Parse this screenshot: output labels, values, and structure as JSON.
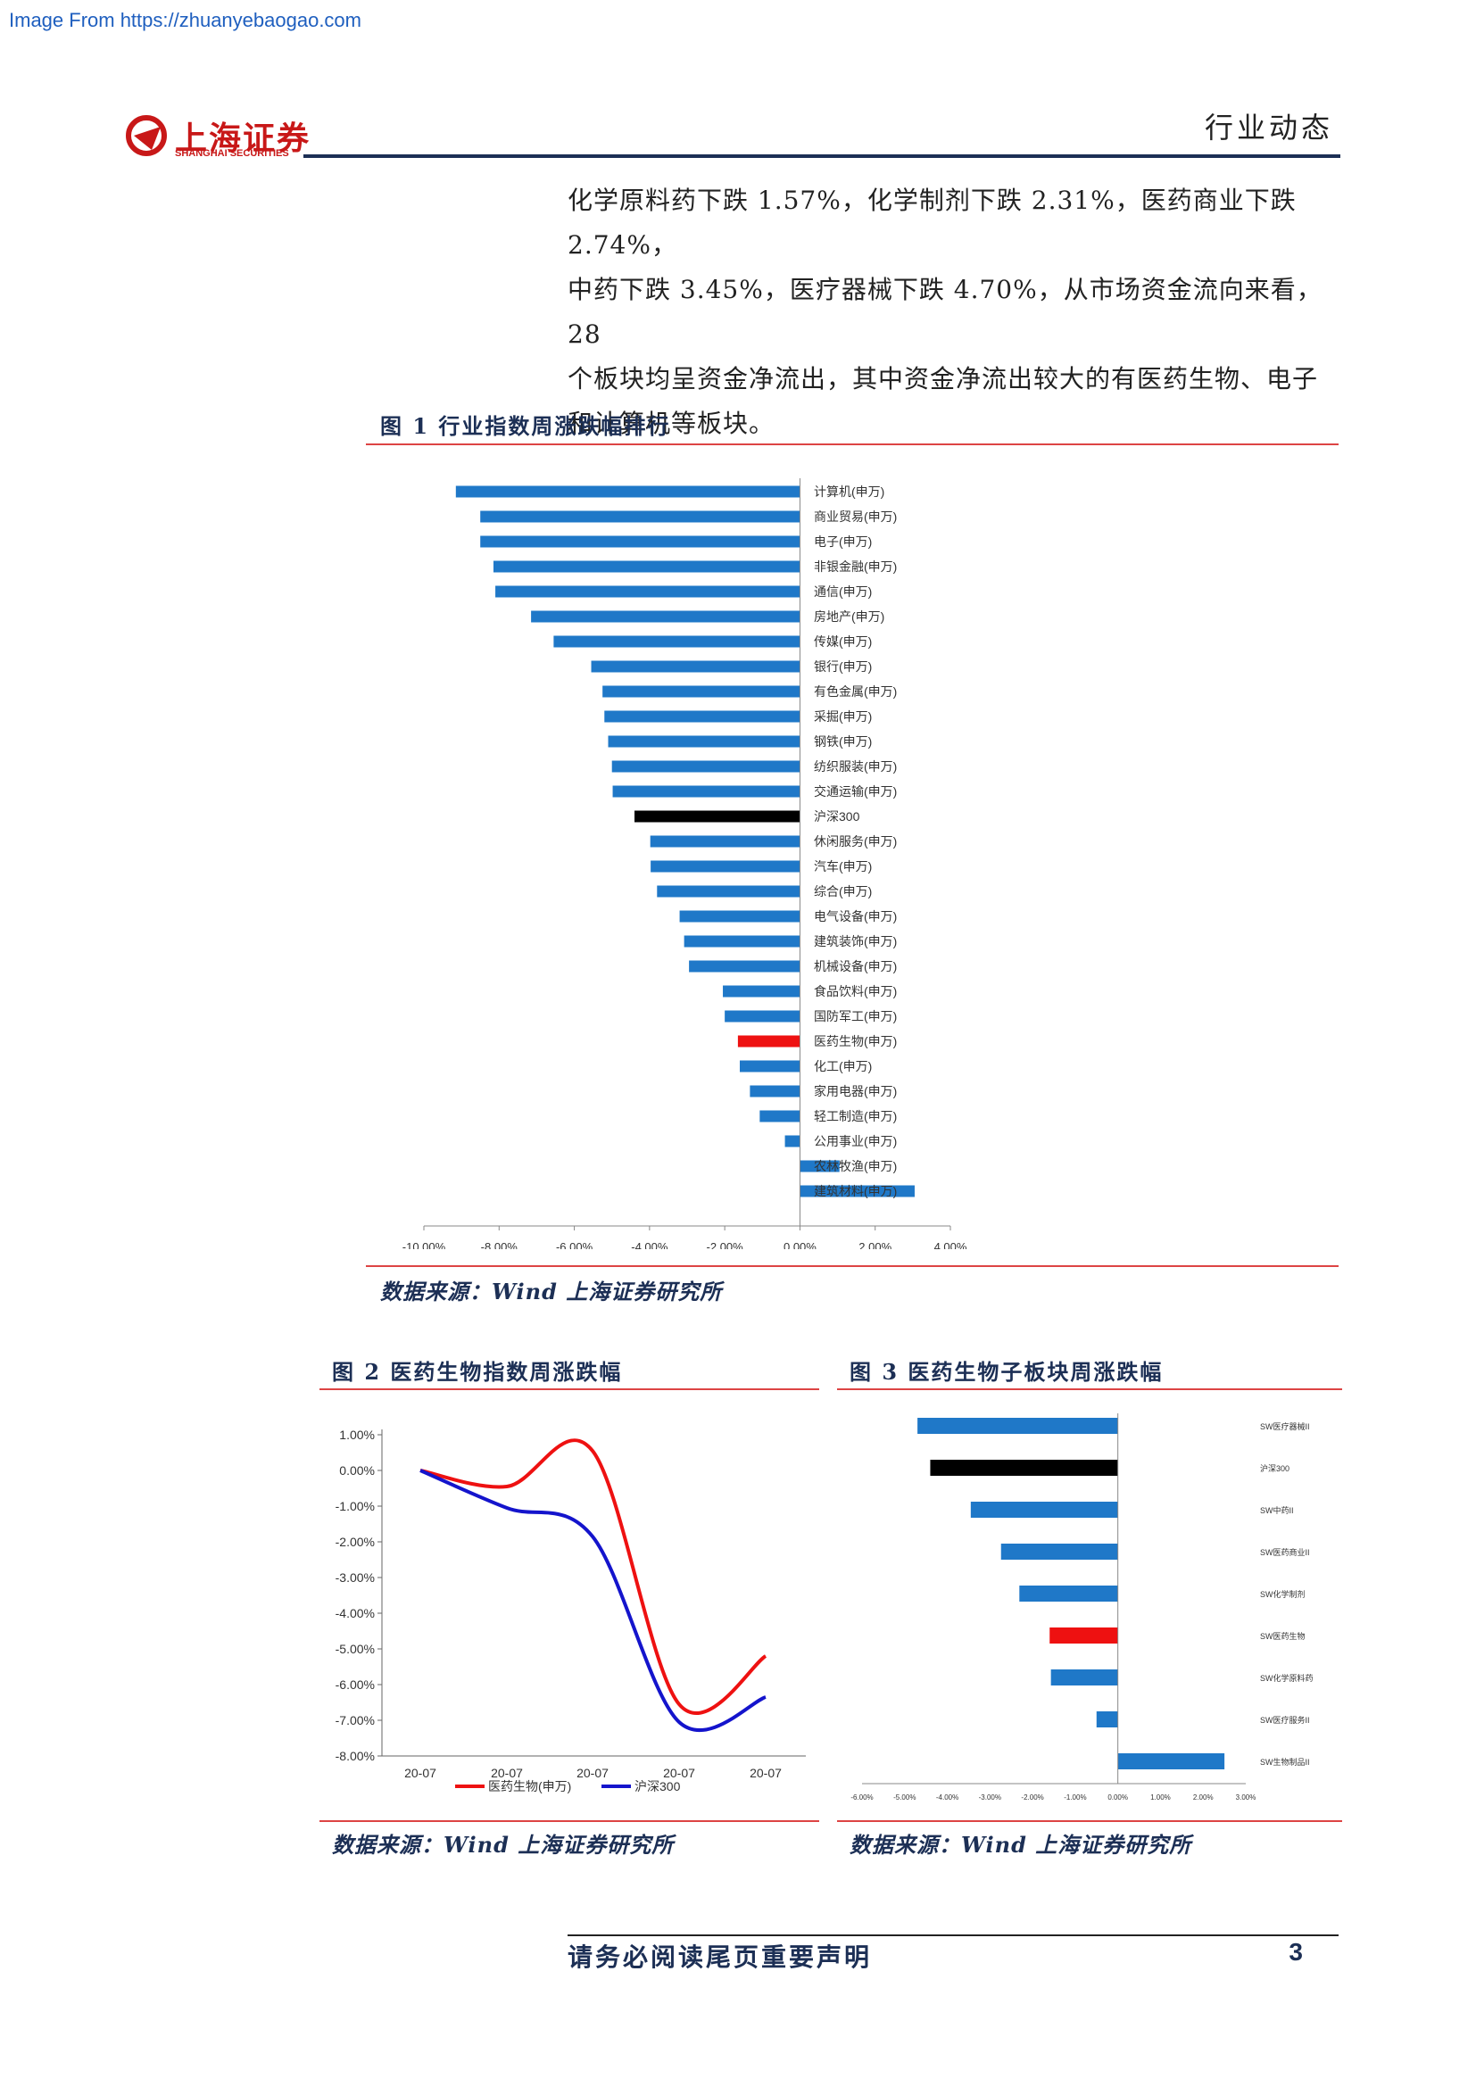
{
  "watermark": "Image From https://zhuanyebaogao.com",
  "header": {
    "logo_text": "上海证券",
    "logo_sub": "SHANGHAI SECURITIES",
    "section": "行业动态"
  },
  "body": {
    "lines": [
      "化学原料药下跌 1.57%，化学制剂下跌 2.31%，医药商业下跌 2.74%，",
      "中药下跌 3.45%，医疗器械下跌 4.70%，从市场资金流向来看，28",
      "个板块均呈资金净流出，其中资金净流出较大的有医药生物、电子",
      "和计算机等板块。"
    ]
  },
  "fig1": {
    "title": "图 1 行业指数周涨跌幅排行",
    "source": "数据来源：Wind 上海证券研究所"
  },
  "fig2": {
    "title": "图 2 医药生物指数周涨跌幅",
    "source": "数据来源：Wind 上海证券研究所"
  },
  "fig3": {
    "title": "图 3 医药生物子板块周涨跌幅",
    "source": "数据来源：Wind 上海证券研究所"
  },
  "colors": {
    "blue": "#1f78c8",
    "red": "#ee1111",
    "black": "#000000",
    "navy": "#1c2f55",
    "line_blue": "#1414cc"
  },
  "chart_data": [
    {
      "type": "bar",
      "orientation": "horizontal",
      "categories": [
        "计算机(申万)",
        "商业贸易(申万)",
        "电子(申万)",
        "非银金融(申万)",
        "通信(申万)",
        "房地产(申万)",
        "传媒(申万)",
        "银行(申万)",
        "有色金属(申万)",
        "采掘(申万)",
        "钢铁(申万)",
        "纺织服装(申万)",
        "交通运输(申万)",
        "沪深300",
        "休闲服务(申万)",
        "汽车(申万)",
        "综合(申万)",
        "电气设备(申万)",
        "建筑装饰(申万)",
        "机械设备(申万)",
        "食品饮料(申万)",
        "国防军工(申万)",
        "医药生物(申万)",
        "化工(申万)",
        "家用电器(申万)",
        "轻工制造(申万)",
        "公用事业(申万)",
        "农林牧渔(申万)",
        "建筑材料(申万)"
      ],
      "values": [
        -9.15,
        -8.5,
        -8.5,
        -8.15,
        -8.1,
        -7.15,
        -6.55,
        -5.55,
        -5.25,
        -5.2,
        -5.1,
        -5.0,
        -4.98,
        -4.4,
        -3.98,
        -3.97,
        -3.8,
        -3.2,
        -3.08,
        -2.95,
        -2.05,
        -2.0,
        -1.65,
        -1.6,
        -1.33,
        -1.07,
        -0.4,
        1.05,
        3.05
      ],
      "highlight": {
        "沪深300": "#000000",
        "医药生物(申万)": "#ee1111"
      },
      "xlim": [
        -10,
        4
      ],
      "xticks": [
        "-10.00%",
        "-8.00%",
        "-6.00%",
        "-4.00%",
        "-2.00%",
        "0.00%",
        "2.00%",
        "4.00%"
      ]
    },
    {
      "type": "line",
      "x": [
        "20-07",
        "20-07",
        "20-07",
        "20-07",
        "20-07"
      ],
      "series": [
        {
          "name": "医药生物(申万)",
          "values": [
            0.0,
            -0.45,
            0.55,
            -6.55,
            -5.2
          ],
          "color": "#ee1111"
        },
        {
          "name": "沪深300",
          "values": [
            0.0,
            -1.05,
            -1.85,
            -7.05,
            -6.35
          ],
          "color": "#1414cc"
        }
      ],
      "ylim": [
        -8,
        1
      ],
      "yticks": [
        "1.00%",
        "0.00%",
        "-1.00%",
        "-2.00%",
        "-3.00%",
        "-4.00%",
        "-5.00%",
        "-6.00%",
        "-7.00%",
        "-8.00%"
      ],
      "legend": "bottom"
    },
    {
      "type": "bar",
      "orientation": "horizontal",
      "categories": [
        "SW医疗器械II",
        "沪深300",
        "SW中药II",
        "SW医药商业II",
        "SW化学制剂",
        "SW医药生物",
        "SW化学原料药",
        "SW医疗服务II",
        "SW生物制品II"
      ],
      "values": [
        -4.7,
        -4.4,
        -3.45,
        -2.74,
        -2.31,
        -1.6,
        -1.57,
        -0.5,
        2.5
      ],
      "highlight": {
        "沪深300": "#000000",
        "SW医药生物": "#ee1111"
      },
      "xlim": [
        -6,
        3
      ],
      "xticks": [
        "-6.00%",
        "-5.00%",
        "-4.00%",
        "-3.00%",
        "-2.00%",
        "-1.00%",
        "0.00%",
        "1.00%",
        "2.00%",
        "3.00%"
      ]
    }
  ]
}
